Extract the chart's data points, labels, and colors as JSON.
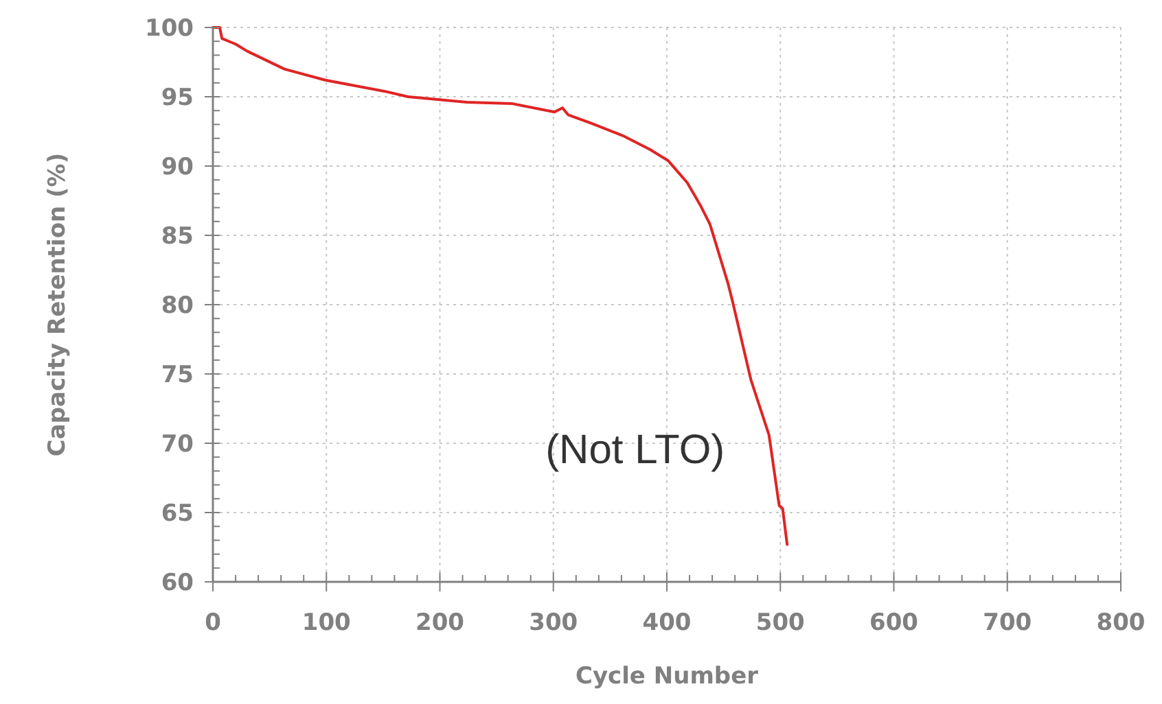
{
  "chart_data": {
    "type": "line",
    "xlabel": "Cycle Number",
    "ylabel": "Capacity Retention (%)",
    "annotations": [
      "(Not LTO)"
    ],
    "xlim": [
      0,
      800
    ],
    "ylim": [
      60,
      100
    ],
    "xticks": [
      0,
      {
        "value": 20,
        "label": null
      },
      {
        "value": 40,
        "label": null
      },
      {
        "value": 60,
        "label": null
      },
      {
        "value": 80,
        "label": null
      },
      100,
      {
        "value": 120,
        "label": null
      },
      {
        "value": 140,
        "label": null
      },
      {
        "value": 160,
        "label": null
      },
      {
        "value": 180,
        "label": null
      },
      200,
      {
        "value": 220,
        "label": null
      },
      {
        "value": 240,
        "label": null
      },
      {
        "value": 260,
        "label": null
      },
      {
        "value": 280,
        "label": null
      },
      300,
      {
        "value": 320,
        "label": null
      },
      {
        "value": 340,
        "label": null
      },
      {
        "value": 360,
        "label": null
      },
      {
        "value": 380,
        "label": null
      },
      400,
      {
        "value": 420,
        "label": null
      },
      {
        "value": 440,
        "label": null
      },
      {
        "value": 460,
        "label": null
      },
      {
        "value": 480,
        "label": null
      },
      500,
      {
        "value": 520,
        "label": null
      },
      {
        "value": 540,
        "label": null
      },
      {
        "value": 560,
        "label": null
      },
      {
        "value": 580,
        "label": null
      },
      600,
      {
        "value": 620,
        "label": null
      },
      {
        "value": 640,
        "label": null
      },
      {
        "value": 660,
        "label": null
      },
      {
        "value": 680,
        "label": null
      },
      700,
      {
        "value": 720,
        "label": null
      },
      {
        "value": 740,
        "label": null
      },
      {
        "value": 760,
        "label": null
      },
      {
        "value": 780,
        "label": null
      },
      800
    ],
    "yticks": [
      60,
      {
        "value": 61,
        "label": null
      },
      {
        "value": 62,
        "label": null
      },
      {
        "value": 63,
        "label": null
      },
      {
        "value": 64,
        "label": null
      },
      65,
      {
        "value": 66,
        "label": null
      },
      {
        "value": 67,
        "label": null
      },
      {
        "value": 68,
        "label": null
      },
      {
        "value": 69,
        "label": null
      },
      70,
      {
        "value": 71,
        "label": null
      },
      {
        "value": 72,
        "label": null
      },
      {
        "value": 73,
        "label": null
      },
      {
        "value": 74,
        "label": null
      },
      75,
      {
        "value": 76,
        "label": null
      },
      {
        "value": 77,
        "label": null
      },
      {
        "value": 78,
        "label": null
      },
      {
        "value": 79,
        "label": null
      },
      80,
      {
        "value": 81,
        "label": null
      },
      {
        "value": 82,
        "label": null
      },
      {
        "value": 83,
        "label": null
      },
      {
        "value": 84,
        "label": null
      },
      85,
      {
        "value": 86,
        "label": null
      },
      {
        "value": 87,
        "label": null
      },
      {
        "value": 88,
        "label": null
      },
      {
        "value": 89,
        "label": null
      },
      90,
      {
        "value": 91,
        "label": null
      },
      {
        "value": 92,
        "label": null
      },
      {
        "value": 93,
        "label": null
      },
      {
        "value": 94,
        "label": null
      },
      95,
      {
        "value": 96,
        "label": null
      },
      {
        "value": 97,
        "label": null
      },
      {
        "value": 98,
        "label": null
      },
      {
        "value": 99,
        "label": null
      },
      100
    ],
    "grid": true,
    "marker": "none",
    "line_style": "solid",
    "series": [
      {
        "color": "#e02424",
        "x": [
          0,
          6,
          8,
          20,
          30,
          63,
          99,
          151,
          172,
          224,
          264,
          301,
          308,
          313,
          333,
          361,
          385,
          401,
          418,
          430,
          438,
          454,
          458,
          474,
          490,
          499,
          502,
          506
        ],
        "values": [
          100,
          100,
          99.2,
          98.8,
          98.3,
          97.0,
          96.2,
          95.4,
          95.0,
          94.6,
          94.5,
          93.9,
          94.2,
          93.7,
          93.1,
          92.2,
          91.2,
          90.4,
          88.8,
          87.1,
          85.8,
          81.5,
          80.2,
          74.6,
          70.6,
          65.5,
          65.3,
          62.7
        ]
      }
    ]
  }
}
